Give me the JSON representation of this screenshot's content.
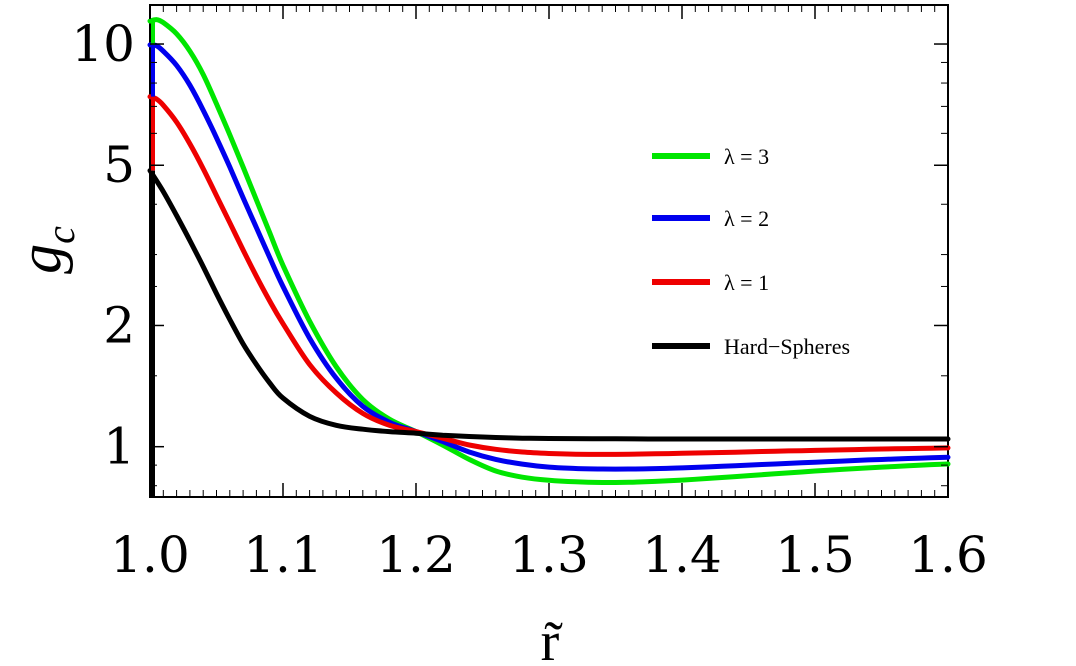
{
  "chart_data": {
    "type": "line",
    "title": "",
    "xlabel": "r̃",
    "ylabel": "g_c",
    "ylabel_main": "g",
    "ylabel_sub": "c",
    "xlim": [
      1.0,
      1.6
    ],
    "ylim": [
      0.75,
      12.5
    ],
    "yscale": "log",
    "grid": false,
    "legend_position": "center-right",
    "x_ticks": [
      1.0,
      1.1,
      1.2,
      1.3,
      1.4,
      1.5,
      1.6
    ],
    "x_tick_labels": [
      "1.0",
      "1.1",
      "1.2",
      "1.3",
      "1.4",
      "1.5",
      "1.6"
    ],
    "y_ticks": [
      1,
      2,
      5,
      10
    ],
    "y_tick_labels": [
      "1",
      "2",
      "5",
      "10"
    ],
    "series": [
      {
        "name": "λ = 3",
        "color": "#00e600",
        "x": [
          1.0,
          1.005,
          1.01,
          1.02,
          1.03,
          1.04,
          1.05,
          1.06,
          1.07,
          1.08,
          1.09,
          1.1,
          1.12,
          1.14,
          1.16,
          1.18,
          1.2,
          1.22,
          1.24,
          1.26,
          1.28,
          1.3,
          1.32,
          1.34,
          1.36,
          1.38,
          1.4,
          1.42,
          1.44,
          1.46,
          1.48,
          1.5,
          1.52,
          1.54,
          1.56,
          1.58,
          1.6
        ],
        "y": [
          11.4,
          11.5,
          11.3,
          10.6,
          9.6,
          8.4,
          7.1,
          5.95,
          4.95,
          4.1,
          3.4,
          2.82,
          2.05,
          1.58,
          1.31,
          1.17,
          1.09,
          1.01,
          0.93,
          0.87,
          0.84,
          0.825,
          0.818,
          0.815,
          0.816,
          0.82,
          0.826,
          0.834,
          0.843,
          0.852,
          0.861,
          0.87,
          0.878,
          0.886,
          0.893,
          0.9,
          0.906
        ]
      },
      {
        "name": "λ = 2",
        "color": "#0000ee",
        "x": [
          1.0,
          1.005,
          1.01,
          1.02,
          1.03,
          1.04,
          1.05,
          1.06,
          1.07,
          1.08,
          1.09,
          1.1,
          1.12,
          1.14,
          1.16,
          1.18,
          1.2,
          1.22,
          1.24,
          1.26,
          1.28,
          1.3,
          1.32,
          1.34,
          1.36,
          1.38,
          1.4,
          1.42,
          1.44,
          1.46,
          1.48,
          1.5,
          1.52,
          1.54,
          1.56,
          1.58,
          1.6
        ],
        "y": [
          9.95,
          9.9,
          9.6,
          8.85,
          7.9,
          6.85,
          5.85,
          4.95,
          4.15,
          3.5,
          2.95,
          2.5,
          1.86,
          1.48,
          1.26,
          1.15,
          1.09,
          1.03,
          0.97,
          0.93,
          0.905,
          0.89,
          0.883,
          0.88,
          0.88,
          0.882,
          0.886,
          0.891,
          0.897,
          0.903,
          0.909,
          0.915,
          0.921,
          0.927,
          0.932,
          0.937,
          0.941
        ]
      },
      {
        "name": "λ = 1",
        "color": "#ee0000",
        "x": [
          1.0,
          1.005,
          1.01,
          1.02,
          1.03,
          1.04,
          1.05,
          1.06,
          1.07,
          1.08,
          1.09,
          1.1,
          1.12,
          1.14,
          1.16,
          1.18,
          1.2,
          1.22,
          1.24,
          1.26,
          1.28,
          1.3,
          1.32,
          1.34,
          1.36,
          1.38,
          1.4,
          1.42,
          1.44,
          1.46,
          1.48,
          1.5,
          1.52,
          1.54,
          1.56,
          1.58,
          1.6
        ],
        "y": [
          7.4,
          7.3,
          7.05,
          6.4,
          5.65,
          4.9,
          4.2,
          3.6,
          3.08,
          2.65,
          2.3,
          2.02,
          1.6,
          1.36,
          1.21,
          1.13,
          1.09,
          1.05,
          1.01,
          0.985,
          0.97,
          0.962,
          0.958,
          0.957,
          0.958,
          0.96,
          0.963,
          0.966,
          0.969,
          0.973,
          0.976,
          0.979,
          0.982,
          0.985,
          0.988,
          0.99,
          0.993
        ]
      },
      {
        "name": "Hard−Spheres",
        "color": "#000000",
        "x": [
          1.0,
          1.01,
          1.02,
          1.03,
          1.04,
          1.05,
          1.06,
          1.07,
          1.08,
          1.09,
          1.1,
          1.12,
          1.14,
          1.16,
          1.18,
          1.2,
          1.22,
          1.24,
          1.26,
          1.28,
          1.3,
          1.35,
          1.4,
          1.45,
          1.5,
          1.55,
          1.6
        ],
        "y": [
          4.85,
          4.3,
          3.75,
          3.25,
          2.8,
          2.4,
          2.07,
          1.8,
          1.6,
          1.44,
          1.32,
          1.19,
          1.13,
          1.105,
          1.09,
          1.08,
          1.068,
          1.06,
          1.054,
          1.05,
          1.048,
          1.046,
          1.045,
          1.045,
          1.045,
          1.045,
          1.045
        ]
      }
    ],
    "hard_sphere_wall": {
      "x": 1.0,
      "y_from": 0.75,
      "y_to": 4.85
    }
  }
}
